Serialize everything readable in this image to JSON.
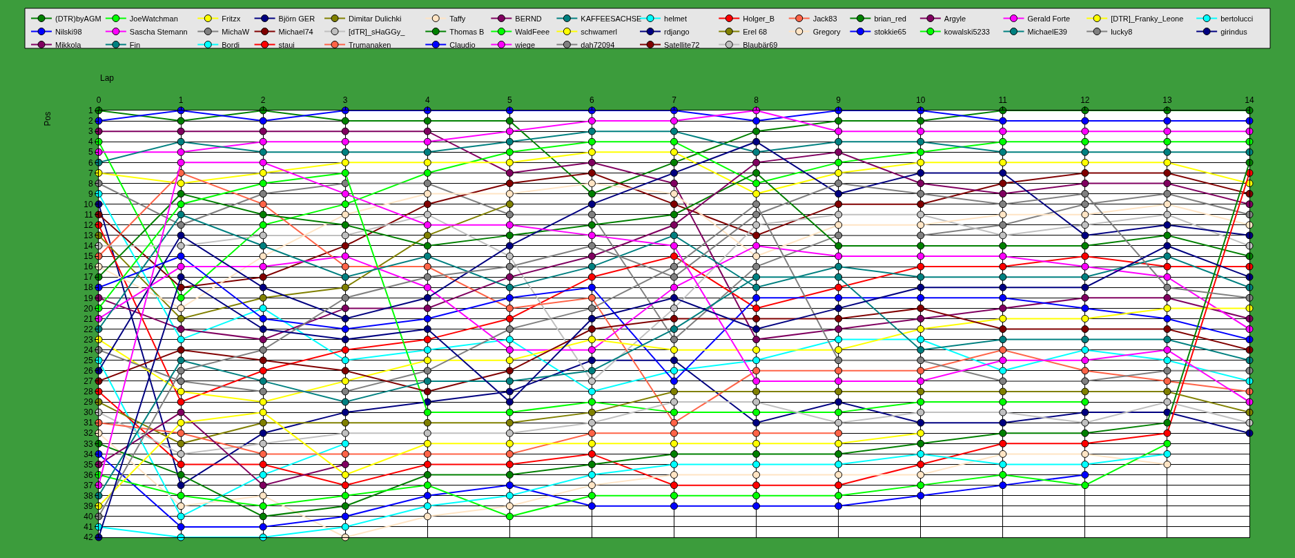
{
  "chart_data": {
    "type": "line",
    "xlabel": "Lap",
    "ylabel": "Pos",
    "x": [
      0,
      1,
      2,
      3,
      4,
      5,
      6,
      7,
      8,
      9,
      10,
      11,
      12,
      13,
      14
    ],
    "xlim": [
      0,
      14
    ],
    "xticks": [
      0,
      1,
      2,
      3,
      4,
      5,
      6,
      7,
      8,
      9,
      10,
      11,
      12,
      13,
      14
    ],
    "ylim": [
      42,
      1
    ],
    "yticks": [
      1,
      2,
      3,
      4,
      5,
      6,
      7,
      8,
      9,
      10,
      11,
      12,
      13,
      14,
      15,
      16,
      17,
      18,
      19,
      20,
      21,
      22,
      23,
      24,
      25,
      26,
      27,
      28,
      29,
      30,
      31,
      32,
      33,
      34,
      35,
      36,
      37,
      38,
      39,
      40,
      41,
      42
    ],
    "grid": true,
    "legend": "top",
    "marker": "circle",
    "line_style": "solid",
    "series": [
      {
        "name": "(DTR)byAGM",
        "color": "#008000",
        "values": [
          1,
          2,
          1,
          2,
          2,
          2,
          9,
          6,
          3,
          2,
          2,
          1,
          1,
          1,
          1
        ]
      },
      {
        "name": "Nilski98",
        "color": "#0000ff",
        "values": [
          2,
          1,
          2,
          1,
          1,
          1,
          1,
          1,
          2,
          1,
          1,
          2,
          2,
          2,
          2
        ]
      },
      {
        "name": "Mikkola",
        "color": "#800060",
        "values": [
          3,
          3,
          3,
          3,
          3,
          7,
          6,
          8,
          23,
          22,
          21,
          20,
          19,
          19,
          21
        ]
      },
      {
        "name": "JoeWatchman",
        "color": "#00ff00",
        "values": [
          4,
          19,
          12,
          10,
          7,
          5,
          4,
          4,
          8,
          6,
          5,
          4,
          4,
          4,
          4
        ]
      },
      {
        "name": "Sascha Stemann",
        "color": "#ff00ff",
        "values": [
          5,
          5,
          4,
          4,
          4,
          3,
          2,
          2,
          1,
          3,
          3,
          3,
          3,
          3,
          3
        ]
      },
      {
        "name": "Fin",
        "color": "#008080",
        "values": [
          6,
          4,
          5,
          5,
          5,
          4,
          3,
          3,
          5,
          4,
          4,
          5,
          5,
          5,
          5
        ]
      },
      {
        "name": "Fritzx",
        "color": "#ffff00",
        "values": [
          7,
          8,
          7,
          6,
          6,
          6,
          5,
          5,
          9,
          7,
          6,
          6,
          6,
          6,
          8
        ]
      },
      {
        "name": "MichaW",
        "color": "#808080",
        "values": [
          8,
          12,
          9,
          8,
          8,
          11,
          11,
          23,
          16,
          13,
          13,
          12,
          10,
          9,
          11
        ]
      },
      {
        "name": "Bordi",
        "color": "#00ffff",
        "values": [
          9,
          23,
          20,
          25,
          24,
          23,
          28,
          26,
          25,
          23,
          23,
          26,
          24,
          25,
          27
        ]
      },
      {
        "name": "Björn GER",
        "color": "#000080",
        "values": [
          10,
          37,
          32,
          30,
          29,
          28,
          25,
          25,
          31,
          29,
          31,
          31,
          30,
          30,
          32
        ]
      },
      {
        "name": "Michael74",
        "color": "#800000",
        "values": [
          11,
          18,
          17,
          14,
          10,
          8,
          7,
          10,
          13,
          10,
          10,
          8,
          7,
          7,
          9
        ]
      },
      {
        "name": "staui",
        "color": "#ff0000",
        "values": [
          12,
          29,
          26,
          24,
          23,
          21,
          17,
          15,
          20,
          18,
          16,
          16,
          15,
          16,
          16
        ]
      },
      {
        "name": "Dimitar Dulichki",
        "color": "#808000",
        "values": [
          13,
          21,
          19,
          18,
          13,
          10,
          null,
          null,
          null,
          null,
          null,
          null,
          null,
          null,
          null
        ]
      },
      {
        "name": "[dTR]_sHaGGy_",
        "color": "#c0c0c0",
        "values": [
          14,
          14,
          13,
          13,
          11,
          15,
          27,
          20,
          12,
          11,
          11,
          13,
          12,
          11,
          14
        ]
      },
      {
        "name": "Trumanaken",
        "color": "#ff6347",
        "values": [
          15,
          7,
          10,
          16,
          16,
          20,
          19,
          31,
          26,
          26,
          26,
          24,
          26,
          27,
          28
        ]
      },
      {
        "name": "Taffy",
        "color": "#ffe4c4",
        "values": [
          16,
          20,
          15,
          11,
          9,
          9,
          8,
          9,
          15,
          12,
          12,
          11,
          11,
          10,
          12
        ]
      },
      {
        "name": "Thomas B",
        "color": "#008000",
        "values": [
          17,
          9,
          11,
          12,
          14,
          13,
          12,
          11,
          7,
          14,
          14,
          14,
          14,
          13,
          15
        ]
      },
      {
        "name": "Claudio",
        "color": "#0000ff",
        "values": [
          18,
          15,
          21,
          22,
          21,
          19,
          18,
          27,
          19,
          19,
          19,
          19,
          20,
          21,
          23
        ]
      },
      {
        "name": "BERND",
        "color": "#800060",
        "values": [
          19,
          22,
          23,
          20,
          20,
          17,
          15,
          12,
          6,
          5,
          8,
          9,
          8,
          8,
          10
        ]
      },
      {
        "name": "WaldFeee",
        "color": "#00ff00",
        "values": [
          20,
          10,
          8,
          7,
          30,
          30,
          29,
          30,
          30,
          30,
          29,
          29,
          29,
          null,
          null
        ]
      },
      {
        "name": "wiege",
        "color": "#ff00ff",
        "values": [
          21,
          16,
          16,
          15,
          18,
          24,
          24,
          18,
          14,
          15,
          15,
          15,
          16,
          17,
          22
        ]
      },
      {
        "name": "KAFFEESACHSE",
        "color": "#008080",
        "values": [
          22,
          11,
          14,
          17,
          15,
          18,
          16,
          13,
          18,
          16,
          17,
          17,
          17,
          15,
          18
        ]
      },
      {
        "name": "schwamerl",
        "color": "#ffff00",
        "values": [
          23,
          28,
          29,
          27,
          25,
          25,
          23,
          24,
          24,
          24,
          22,
          21,
          21,
          20,
          20
        ]
      },
      {
        "name": "dah72094",
        "color": "#808080",
        "values": [
          24,
          27,
          28,
          28,
          26,
          22,
          20,
          16,
          10,
          25,
          25,
          27,
          27,
          26,
          26
        ]
      },
      {
        "name": "helmet",
        "color": "#00ffff",
        "values": [
          25,
          40,
          36,
          33,
          null,
          null,
          null,
          null,
          null,
          null,
          null,
          null,
          null,
          null,
          null
        ]
      },
      {
        "name": "rdjango",
        "color": "#000080",
        "values": [
          26,
          13,
          18,
          21,
          19,
          14,
          10,
          7,
          4,
          9,
          7,
          7,
          13,
          12,
          13
        ]
      },
      {
        "name": "Satellite72",
        "color": "#800000",
        "values": [
          27,
          24,
          25,
          26,
          28,
          26,
          22,
          21,
          21,
          21,
          20,
          22,
          22,
          22,
          24
        ]
      },
      {
        "name": "Holger_B",
        "color": "#ff0000",
        "values": [
          28,
          35,
          35,
          37,
          35,
          35,
          34,
          37,
          37,
          37,
          35,
          33,
          33,
          32,
          7
        ]
      },
      {
        "name": "Erel 68",
        "color": "#808000",
        "values": [
          29,
          33,
          31,
          31,
          31,
          31,
          30,
          28,
          28,
          28,
          28,
          28,
          28,
          28,
          30
        ]
      },
      {
        "name": "Blaubär69",
        "color": "#c0c0c0",
        "values": [
          30,
          34,
          33,
          32,
          32,
          32,
          31,
          29,
          29,
          31,
          30,
          30,
          31,
          29,
          31
        ]
      },
      {
        "name": "Jack83",
        "color": "#ff6347",
        "values": [
          31,
          32,
          34,
          34,
          34,
          34,
          32,
          32,
          32,
          32,
          null,
          null,
          null,
          null,
          null
        ]
      },
      {
        "name": "Gregory",
        "color": "#ffe4c4",
        "values": [
          32,
          39,
          38,
          42,
          40,
          39,
          37,
          36,
          36,
          36,
          36,
          34,
          34,
          35,
          null
        ]
      },
      {
        "name": "brian_red",
        "color": "#008000",
        "values": [
          33,
          36,
          40,
          39,
          36,
          36,
          35,
          34,
          34,
          34,
          33,
          32,
          32,
          31,
          6
        ]
      },
      {
        "name": "stokkie65",
        "color": "#0000ff",
        "values": [
          34,
          41,
          41,
          40,
          38,
          37,
          39,
          39,
          39,
          39,
          38,
          37,
          36,
          null,
          null
        ]
      },
      {
        "name": "Argyle",
        "color": "#800060",
        "values": [
          35,
          30,
          37,
          35,
          null,
          null,
          null,
          null,
          null,
          null,
          null,
          null,
          null,
          null,
          null
        ]
      },
      {
        "name": "kowalski5233",
        "color": "#00ff00",
        "values": [
          36,
          38,
          39,
          38,
          37,
          40,
          38,
          38,
          38,
          38,
          37,
          36,
          37,
          33,
          null
        ]
      },
      {
        "name": "Gerald Forte",
        "color": "#ff00ff",
        "values": [
          37,
          6,
          6,
          9,
          12,
          12,
          13,
          14,
          27,
          27,
          27,
          25,
          25,
          24,
          29
        ]
      },
      {
        "name": "MichaelE39",
        "color": "#008080",
        "values": [
          38,
          25,
          27,
          29,
          27,
          27,
          26,
          22,
          17,
          17,
          24,
          23,
          23,
          23,
          25
        ]
      },
      {
        "name": "[DTR]_Franky_Leone",
        "color": "#ffff00",
        "values": [
          39,
          31,
          30,
          36,
          33,
          33,
          33,
          33,
          33,
          33,
          32,
          null,
          null,
          null,
          null
        ]
      },
      {
        "name": "lucky8",
        "color": "#808080",
        "values": [
          40,
          26,
          24,
          19,
          17,
          16,
          14,
          17,
          11,
          8,
          9,
          10,
          9,
          18,
          19
        ]
      },
      {
        "name": "bertolucci",
        "color": "#00ffff",
        "values": [
          41,
          42,
          42,
          41,
          39,
          38,
          36,
          35,
          35,
          35,
          34,
          35,
          35,
          34,
          null
        ]
      },
      {
        "name": "girindus",
        "color": "#000080",
        "values": [
          42,
          17,
          22,
          23,
          22,
          29,
          21,
          19,
          22,
          20,
          18,
          18,
          18,
          14,
          17
        ]
      }
    ]
  }
}
